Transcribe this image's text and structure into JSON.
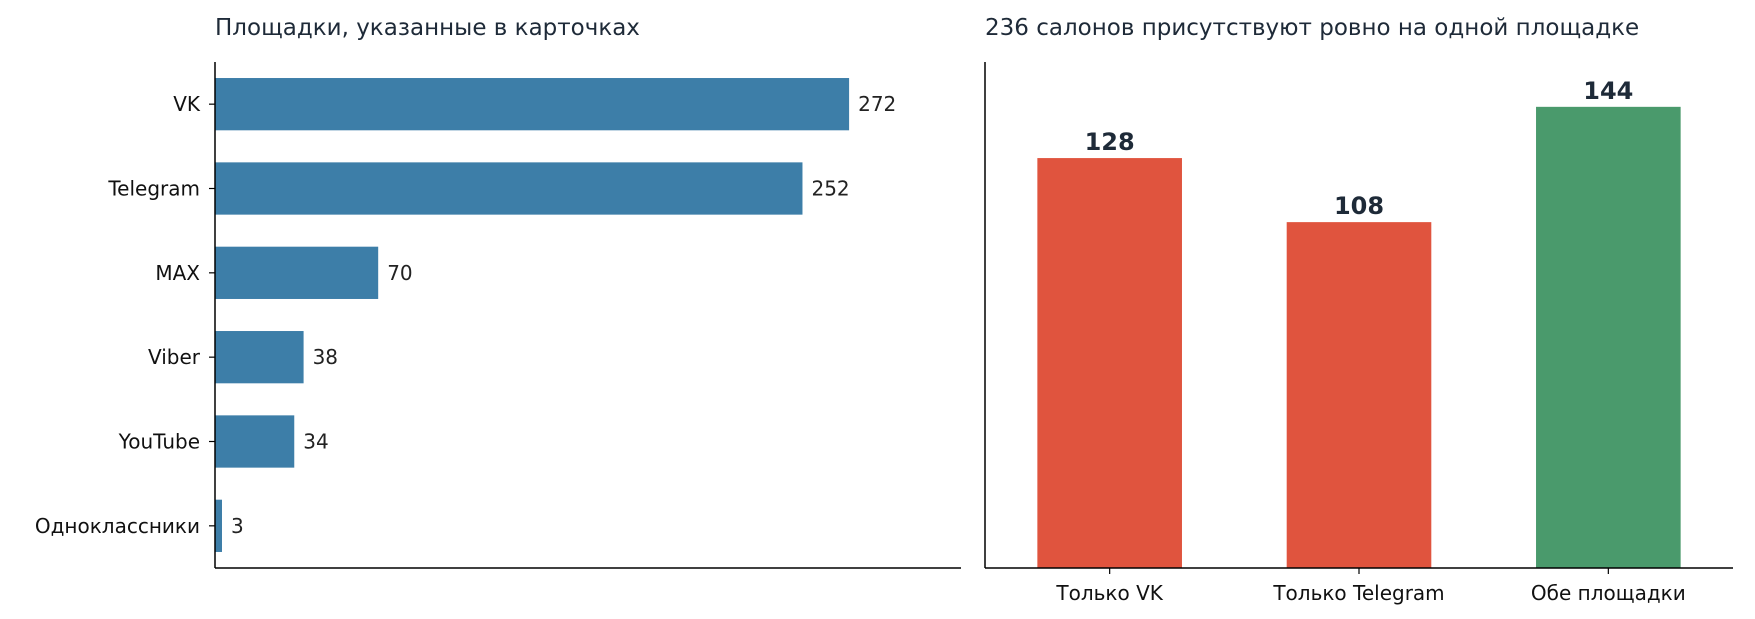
{
  "chart_data": [
    {
      "type": "bar",
      "orientation": "horizontal",
      "title": "Площадки, указанные в карточках",
      "categories": [
        "VK",
        "Telegram",
        "MAX",
        "Viber",
        "YouTube",
        "Одноклассники"
      ],
      "values": [
        272,
        252,
        70,
        38,
        34,
        3
      ],
      "data_labels": [
        "272",
        "252",
        "70",
        "38",
        "34",
        "3"
      ],
      "color": "#3d7ea8",
      "xlim": [
        0,
        320
      ],
      "grid": false,
      "xticks_visible": false
    },
    {
      "type": "bar",
      "orientation": "vertical",
      "title": "236 салонов присутствуют ровно на одной площадке",
      "categories": [
        "Только VK",
        "Только Telegram",
        "Обе площадки"
      ],
      "values": [
        128,
        108,
        144
      ],
      "data_labels": [
        "128",
        "108",
        "144"
      ],
      "colors": [
        "#e0543e",
        "#e0543e",
        "#4a9a6c"
      ],
      "ylim": [
        0,
        158
      ],
      "grid": false,
      "yticks_visible": false
    }
  ]
}
